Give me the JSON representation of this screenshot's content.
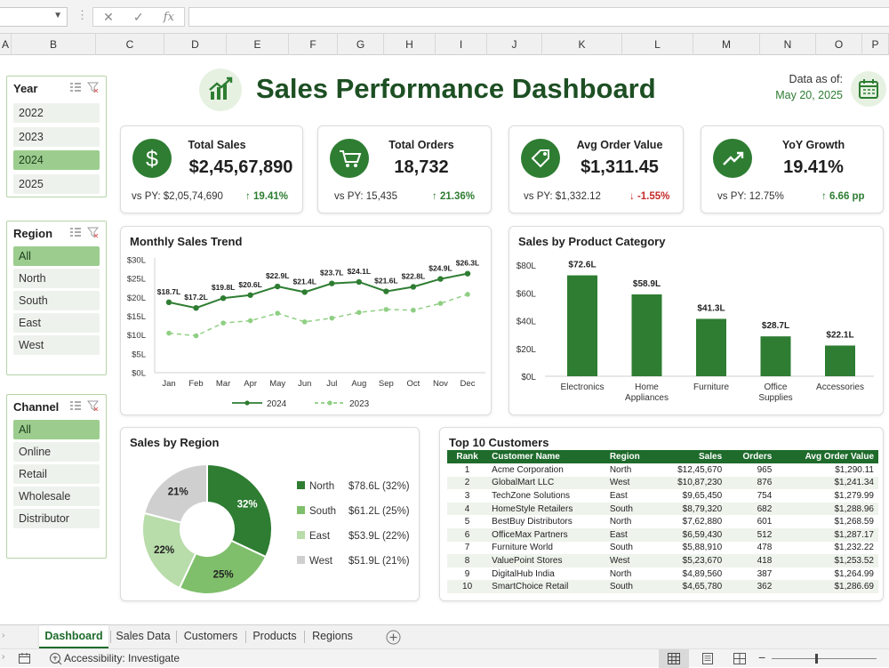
{
  "formula_bar": {
    "name_box": "",
    "fx_label": "fx",
    "formula": ""
  },
  "columns": [
    "A",
    "B",
    "C",
    "D",
    "E",
    "F",
    "G",
    "H",
    "I",
    "J",
    "K",
    "L",
    "M",
    "N",
    "O",
    "P"
  ],
  "dashboard": {
    "title": "Sales Performance Dashboard",
    "as_of_label": "Data as of:",
    "as_of_date": "May 20, 2025"
  },
  "slicers": {
    "year": {
      "title": "Year",
      "items": [
        "2022",
        "2023",
        "2024",
        "2025"
      ],
      "selected": "2024"
    },
    "region": {
      "title": "Region",
      "items": [
        "All",
        "North",
        "South",
        "East",
        "West"
      ],
      "selected": "All"
    },
    "channel": {
      "title": "Channel",
      "items": [
        "All",
        "Online",
        "Retail",
        "Wholesale",
        "Distributor"
      ],
      "selected": "All"
    }
  },
  "kpis": [
    {
      "title": "Total Sales",
      "value": "$2,45,67,890",
      "py": "vs PY: $2,05,74,690",
      "delta": "19.41%",
      "direction": "up",
      "icon": "dollar-icon"
    },
    {
      "title": "Total Orders",
      "value": "18,732",
      "py": "vs PY: 15,435",
      "delta": "21.36%",
      "direction": "up",
      "icon": "cart-icon"
    },
    {
      "title": "Avg Order Value",
      "value": "$1,311.45",
      "py": "vs PY: $1,332.12",
      "delta": "-1.55%",
      "direction": "down",
      "icon": "tag-icon"
    },
    {
      "title": "YoY Growth",
      "value": "19.41%",
      "py": "vs PY: 12.75%",
      "delta": "6.66 pp",
      "direction": "up",
      "icon": "trend-up-icon"
    }
  ],
  "chart_data": [
    {
      "type": "line",
      "title": "Monthly Sales Trend",
      "categories": [
        "Jan",
        "Feb",
        "Mar",
        "Apr",
        "May",
        "Jun",
        "Jul",
        "Aug",
        "Sep",
        "Oct",
        "Nov",
        "Dec"
      ],
      "y_ticks": [
        "$0L",
        "$5L",
        "$10L",
        "$15L",
        "$20L",
        "$25L",
        "$30L"
      ],
      "ylim": [
        0,
        30
      ],
      "series": [
        {
          "name": "2024",
          "values": [
            18.7,
            17.2,
            19.8,
            20.6,
            22.9,
            21.4,
            23.7,
            24.1,
            21.6,
            22.8,
            24.9,
            26.3
          ],
          "labels": [
            "$18.7L",
            "$17.2L",
            "$19.8L",
            "$20.6L",
            "$22.9L",
            "$21.4L",
            "$23.7L",
            "$24.1L",
            "$21.6L",
            "$22.8L",
            "$24.9L",
            "$26.3L"
          ],
          "color": "#2e7d32",
          "dashed": false
        },
        {
          "name": "2023",
          "values": [
            10.5,
            9.8,
            13.2,
            13.8,
            15.8,
            13.5,
            14.5,
            16.0,
            16.8,
            16.6,
            18.4,
            20.8
          ],
          "color": "#8fcf83",
          "dashed": true
        }
      ],
      "legend": "bottom"
    },
    {
      "type": "bar",
      "title": "Sales by Product Category",
      "categories": [
        "Electronics",
        "Home Appliances",
        "Furniture",
        "Office Supplies",
        "Accessories"
      ],
      "category_lines": [
        [
          "Electronics"
        ],
        [
          "Home",
          "Appliances"
        ],
        [
          "Furniture"
        ],
        [
          "Office",
          "Supplies"
        ],
        [
          "Accessories"
        ]
      ],
      "values": [
        72.6,
        58.9,
        41.3,
        28.7,
        22.1
      ],
      "labels": [
        "$72.6L",
        "$58.9L",
        "$41.3L",
        "$28.7L",
        "$22.1L"
      ],
      "y_ticks": [
        "$0L",
        "$20L",
        "$40L",
        "$60L",
        "$80L"
      ],
      "ylim": [
        0,
        80
      ],
      "color": "#2e7d32"
    },
    {
      "type": "pie",
      "title": "Sales by Region",
      "slices": [
        {
          "name": "North",
          "value": 32,
          "label": "32%",
          "amount": "$78.6L (32%)",
          "color": "#2e7d32"
        },
        {
          "name": "South",
          "value": 25,
          "label": "25%",
          "amount": "$61.2L (25%)",
          "color": "#7fbf6b"
        },
        {
          "name": "East",
          "value": 22,
          "label": "22%",
          "amount": "$53.9L (22%)",
          "color": "#b8dcaa"
        },
        {
          "name": "West",
          "value": 21,
          "label": "21%",
          "amount": "$51.9L (21%)",
          "color": "#cfcfcf"
        }
      ]
    }
  ],
  "customers": {
    "title": "Top 10 Customers",
    "headers": [
      "Rank",
      "Customer Name",
      "Region",
      "Sales",
      "Orders",
      "Avg Order Value"
    ],
    "rows": [
      [
        "1",
        "Acme Corporation",
        "North",
        "$12,45,670",
        "965",
        "$1,290.11"
      ],
      [
        "2",
        "GlobalMart LLC",
        "West",
        "$10,87,230",
        "876",
        "$1,241.34"
      ],
      [
        "3",
        "TechZone Solutions",
        "East",
        "$9,65,450",
        "754",
        "$1,279.99"
      ],
      [
        "4",
        "HomeStyle Retailers",
        "South",
        "$8,79,320",
        "682",
        "$1,288.96"
      ],
      [
        "5",
        "BestBuy Distributors",
        "North",
        "$7,62,880",
        "601",
        "$1,268.59"
      ],
      [
        "6",
        "OfficeMax Partners",
        "East",
        "$6,59,430",
        "512",
        "$1,287.17"
      ],
      [
        "7",
        "Furniture World",
        "South",
        "$5,88,910",
        "478",
        "$1,232.22"
      ],
      [
        "8",
        "ValuePoint Stores",
        "West",
        "$5,23,670",
        "418",
        "$1,253.52"
      ],
      [
        "9",
        "DigitalHub India",
        "North",
        "$4,89,560",
        "387",
        "$1,264.99"
      ],
      [
        "10",
        "SmartChoice Retail",
        "South",
        "$4,65,780",
        "362",
        "$1,286.69"
      ]
    ]
  },
  "sheet_tabs": [
    "Dashboard",
    "Sales Data",
    "Customers",
    "Products",
    "Regions"
  ],
  "active_tab": "Dashboard",
  "status": {
    "accessibility": "Accessibility: Investigate"
  }
}
